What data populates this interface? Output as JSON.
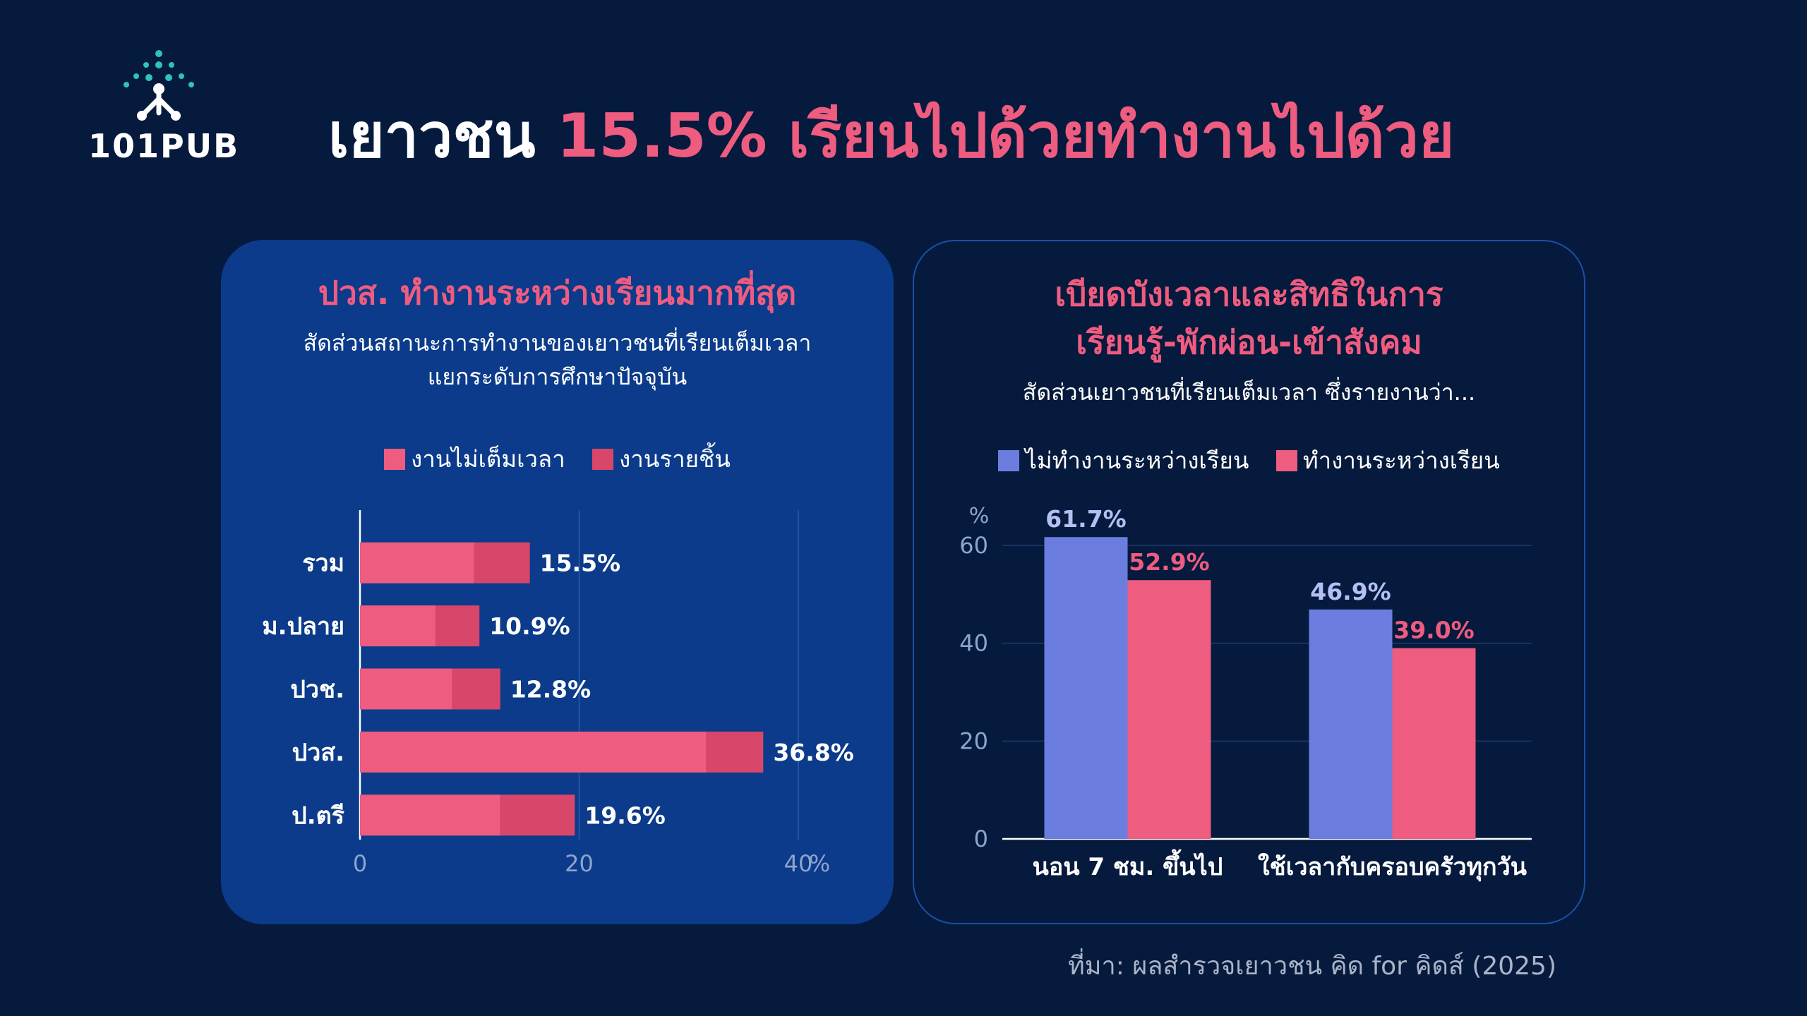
{
  "brand": {
    "name": "101PUB"
  },
  "headline": {
    "part1": "เยาวชน ",
    "accent": "15.5% เรียนไปด้วยทำงานไปด้วย"
  },
  "colors": {
    "background": "#061a3d",
    "panel_left": "#0b3b8a",
    "accent_pink": "#ee5c80",
    "dark_pink": "#d8466a",
    "blue_purple": "#6c7de0"
  },
  "left_panel": {
    "title": "ปวส. ทำงานระหว่างเรียนมากที่สุด",
    "subtitle_line1": "สัดส่วนสถานะการทำงานของเยาวชนที่เรียนเต็มเวลา",
    "subtitle_line2": "แยกระดับการศึกษาปัจจุบัน",
    "legend": [
      "งานไม่เต็มเวลา",
      "งานรายชิ้น"
    ]
  },
  "right_panel": {
    "title_line1": "เบียดบังเวลาและสิทธิในการ",
    "title_line2": "เรียนรู้-พักผ่อน-เข้าสังคม",
    "subtitle": "สัดส่วนเยาวชนที่เรียนเต็มเวลา ซึ่งรายงานว่า...",
    "legend": [
      "ไม่ทำงานระหว่างเรียน",
      "ทำงานระหว่างเรียน"
    ]
  },
  "chart_data": [
    {
      "type": "bar",
      "orientation": "horizontal",
      "stacked": true,
      "categories": [
        "รวม",
        "ม.ปลาย",
        "ปวช.",
        "ปวส.",
        "ป.ตรี"
      ],
      "series": [
        {
          "name": "งานไม่เต็มเวลา",
          "values": [
            10.4,
            6.9,
            8.4,
            31.6,
            12.8
          ]
        },
        {
          "name": "งานรายชิ้น",
          "values": [
            5.1,
            4.0,
            4.4,
            5.2,
            6.8
          ]
        }
      ],
      "totals": [
        15.5,
        10.9,
        12.8,
        36.8,
        19.6
      ],
      "data_labels": [
        "15.5%",
        "10.9%",
        "12.8%",
        "36.8%",
        "19.6%"
      ],
      "xlim": [
        0,
        40
      ],
      "xticks": [
        "0",
        "20",
        "40"
      ],
      "xunit": "%",
      "grid": true
    },
    {
      "type": "bar",
      "orientation": "vertical",
      "categories": [
        "นอน 7 ชม. ขึ้นไป",
        "ใช้เวลากับครอบครัวทุกวัน"
      ],
      "series": [
        {
          "name": "ไม่ทำงานระหว่างเรียน",
          "values": [
            61.7,
            46.9
          ],
          "labels": [
            "61.7%",
            "46.9%"
          ]
        },
        {
          "name": "ทำงานระหว่างเรียน",
          "values": [
            52.9,
            39.0
          ],
          "labels": [
            "52.9%",
            "39.0%"
          ]
        }
      ],
      "ylim": [
        0,
        60
      ],
      "yticks": [
        "0",
        "20",
        "40",
        "60"
      ],
      "yunit": "%",
      "grid": true
    }
  ],
  "source": "ที่มา: ผลสำรวจเยาวชน คิด for คิดส์ (2025)"
}
